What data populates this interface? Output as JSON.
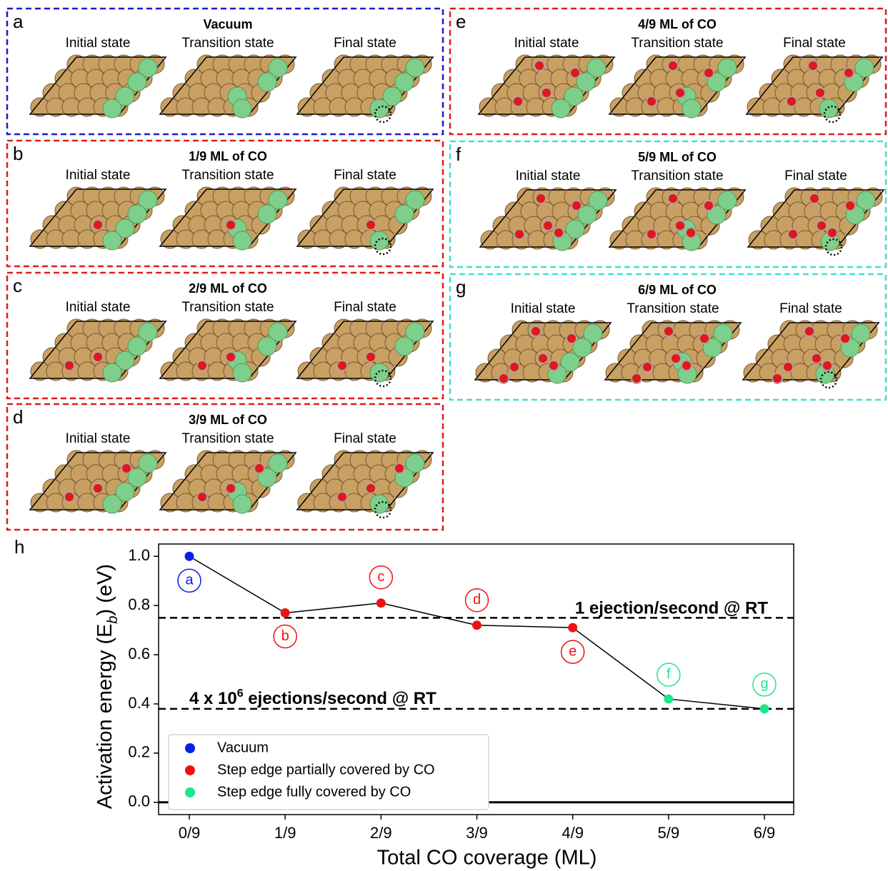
{
  "panels": [
    {
      "letter": "a",
      "title": "Vacuum",
      "states": [
        "Initial state",
        "Transition state",
        "Final state"
      ],
      "color": "#1a1ad0"
    },
    {
      "letter": "b",
      "title": "1/9 ML of CO",
      "states": [
        "Initial state",
        "Transition state",
        "Final state"
      ],
      "color": "#e01b1b"
    },
    {
      "letter": "c",
      "title": "2/9 ML of CO",
      "states": [
        "Initial state",
        "Transition state",
        "Final state"
      ],
      "color": "#e01b1b"
    },
    {
      "letter": "d",
      "title": "3/9 ML of CO",
      "states": [
        "Initial state",
        "Transition state",
        "Final state"
      ],
      "color": "#e01b1b"
    },
    {
      "letter": "e",
      "title": "4/9 ML of CO",
      "states": [
        "Initial state",
        "Transition state",
        "Final state"
      ],
      "color": "#e01b1b"
    },
    {
      "letter": "f",
      "title": "5/9 ML of CO",
      "states": [
        "Initial state",
        "Transition state",
        "Final state"
      ],
      "color": "#3fe0cc"
    },
    {
      "letter": "g",
      "title": "6/9 ML of CO",
      "states": [
        "Initial state",
        "Transition state",
        "Final state"
      ],
      "color": "#3fe0cc"
    }
  ],
  "chart_data": {
    "type": "line",
    "panel_letter": "h",
    "xlabel": "Total CO coverage (ML)",
    "ylabel_parts": [
      "Activation energy (E",
      "b",
      ") (eV)"
    ],
    "categories": [
      "0/9",
      "1/9",
      "2/9",
      "3/9",
      "4/9",
      "5/9",
      "6/9"
    ],
    "series": [
      {
        "name": "Vacuum",
        "color": "#0a1ee6",
        "values": [
          1.0,
          null,
          null,
          null,
          null,
          null,
          null
        ]
      },
      {
        "name": "Step edge partially covered by CO",
        "color": "#ee1111",
        "values": [
          null,
          0.77,
          0.81,
          0.72,
          0.71,
          null,
          null
        ]
      },
      {
        "name": "Step edge fully covered by CO",
        "color": "#1de58a",
        "values": [
          null,
          null,
          null,
          null,
          null,
          0.42,
          0.38
        ]
      }
    ],
    "point_labels": [
      "a",
      "b",
      "c",
      "d",
      "e",
      "f",
      "g"
    ],
    "line_color": "#000000",
    "ylim": [
      -0.05,
      1.05
    ],
    "yticks": [
      {
        "value": 0,
        "label": "0.0"
      },
      0.2,
      0.4,
      0.6,
      0.8,
      {
        "value": 1,
        "label": "1.0"
      }
    ],
    "reference_lines": [
      {
        "value": 0.75,
        "label": "1 ejection/second @ RT"
      },
      {
        "value": 0.38,
        "label": "4 x 10",
        "superscript": "6",
        "label_end": " ejections/second @ RT"
      }
    ],
    "baseline": 0.0,
    "legend": "lower left"
  }
}
